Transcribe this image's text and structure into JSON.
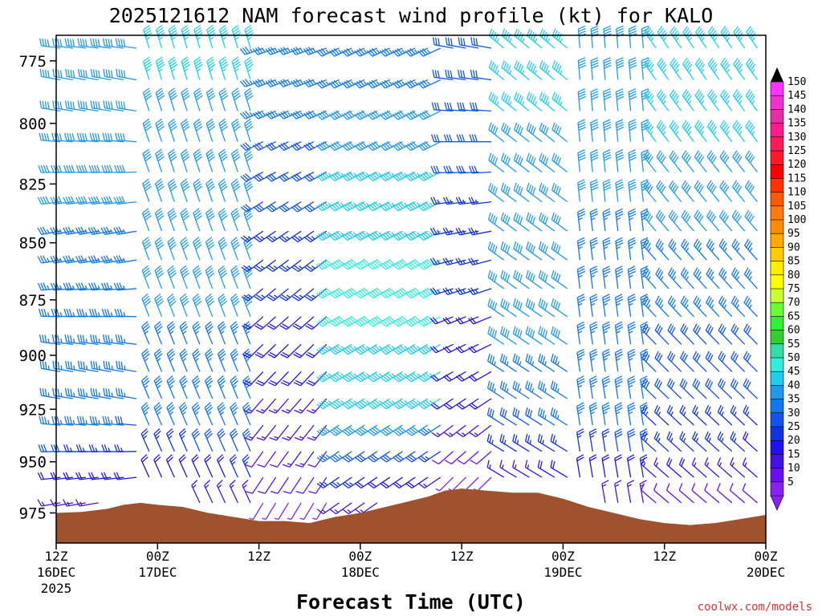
{
  "chart_data": {
    "type": "wind_profile",
    "title": "2025121612 NAM forecast wind profile (kt) for KALO",
    "xlabel": "Forecast Time (UTC)",
    "credit": "coolwx.com/models",
    "y_axis": {
      "unit": "hPa",
      "range": [
        990,
        765
      ],
      "ticks": [
        "775",
        "800",
        "825",
        "850",
        "875",
        "900",
        "925",
        "950",
        "975"
      ]
    },
    "x_axis": {
      "unit": "forecast hour from 2025-12-16 12Z",
      "range": [
        0,
        84
      ],
      "ticks": [
        {
          "hour": 0,
          "line1": "12Z",
          "line2": "16DEC",
          "line3": "2025"
        },
        {
          "hour": 12,
          "line1": "00Z",
          "line2": "17DEC",
          "line3": ""
        },
        {
          "hour": 24,
          "line1": "12Z",
          "line2": "",
          "line3": ""
        },
        {
          "hour": 36,
          "line1": "00Z",
          "line2": "18DEC",
          "line3": ""
        },
        {
          "hour": 48,
          "line1": "12Z",
          "line2": "",
          "line3": ""
        },
        {
          "hour": 60,
          "line1": "00Z",
          "line2": "19DEC",
          "line3": ""
        },
        {
          "hour": 72,
          "line1": "12Z",
          "line2": "",
          "line3": ""
        },
        {
          "hour": 84,
          "line1": "00Z",
          "line2": "20DEC",
          "line3": ""
        }
      ]
    },
    "colorbar": {
      "labels": [
        "150",
        "145",
        "140",
        "135",
        "130",
        "125",
        "120",
        "115",
        "110",
        "105",
        "100",
        "95",
        "90",
        "85",
        "80",
        "75",
        "70",
        "65",
        "60",
        "55",
        "50",
        "45",
        "40",
        "35",
        "30",
        "25",
        "20",
        "15",
        "10",
        "5"
      ],
      "colors": [
        "#ff33ff",
        "#f032d2",
        "#e62da5",
        "#ff1a8c",
        "#ff1a5a",
        "#ff1a2a",
        "#ff0000",
        "#ff3300",
        "#ff5a00",
        "#ff7a10",
        "#ff8c00",
        "#ffaa00",
        "#ffcc00",
        "#ffee00",
        "#ffff00",
        "#ccff33",
        "#66ff33",
        "#33ee33",
        "#33cc33",
        "#33ddaa",
        "#33eedd",
        "#22ccee",
        "#2299ee",
        "#1177ee",
        "#1155ee",
        "#1133dd",
        "#2211ee",
        "#4411dd",
        "#6611ee",
        "#8822ee"
      ]
    },
    "surface_pressure_hpa": [
      {
        "hour": 0,
        "p": 975
      },
      {
        "hour": 3,
        "p": 974.5
      },
      {
        "hour": 6,
        "p": 973
      },
      {
        "hour": 8,
        "p": 971
      },
      {
        "hour": 10,
        "p": 970
      },
      {
        "hour": 12,
        "p": 971
      },
      {
        "hour": 15,
        "p": 972
      },
      {
        "hour": 18,
        "p": 975
      },
      {
        "hour": 21,
        "p": 977
      },
      {
        "hour": 24,
        "p": 979
      },
      {
        "hour": 27,
        "p": 979
      },
      {
        "hour": 30,
        "p": 980
      },
      {
        "hour": 33,
        "p": 977
      },
      {
        "hour": 36,
        "p": 975
      },
      {
        "hour": 39,
        "p": 972
      },
      {
        "hour": 42,
        "p": 969
      },
      {
        "hour": 44,
        "p": 967
      },
      {
        "hour": 46,
        "p": 964
      },
      {
        "hour": 48,
        "p": 963
      },
      {
        "hour": 51,
        "p": 964
      },
      {
        "hour": 54,
        "p": 965
      },
      {
        "hour": 57,
        "p": 965
      },
      {
        "hour": 60,
        "p": 968
      },
      {
        "hour": 63,
        "p": 972
      },
      {
        "hour": 66,
        "p": 975
      },
      {
        "hour": 69,
        "p": 978
      },
      {
        "hour": 72,
        "p": 980
      },
      {
        "hour": 75,
        "p": 981
      },
      {
        "hour": 78,
        "p": 980
      },
      {
        "hour": 81,
        "p": 978
      },
      {
        "hour": 84,
        "p": 976
      }
    ],
    "wind_regimes": [
      {
        "h0": 0,
        "h1": 10,
        "description": "westerly 30-40 kt aloft"
      },
      {
        "h0": 10,
        "h1": 24,
        "description": "north-northwesterly 35-45 kt"
      },
      {
        "h0": 24,
        "h1": 33,
        "description": "westerly to southwesterly 10-35 kt"
      },
      {
        "h0": 33,
        "h1": 46,
        "description": "southwesterly 30-50 kt"
      },
      {
        "h0": 46,
        "h1": 52,
        "description": "veering, light near surface"
      },
      {
        "h0": 52,
        "h1": 62,
        "description": "northwesterly 35-45 kt"
      },
      {
        "h0": 62,
        "h1": 70,
        "description": "northerly 30-40 kt"
      },
      {
        "h0": 70,
        "h1": 84,
        "description": "northwesterly 25-45 kt, light near surface"
      }
    ]
  }
}
